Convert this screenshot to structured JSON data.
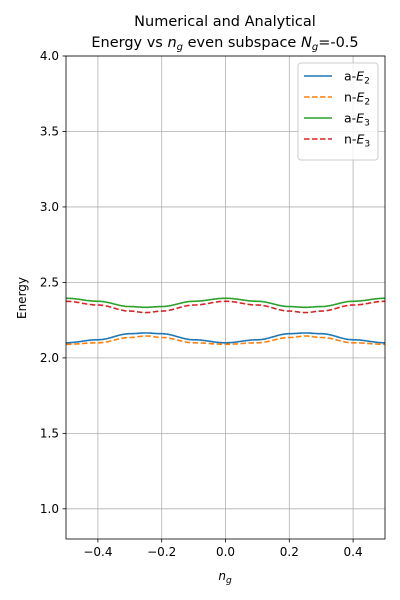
{
  "chart_data": {
    "type": "line",
    "title_line1": "Numerical and Analytical",
    "title_line2_prefix": "Energy vs ",
    "title_line2_var": "n",
    "title_line2_sub": "g",
    "title_line2_mid": " even subspace ",
    "title_line2_var2": "N",
    "title_line2_sub2": "g",
    "title_line2_suffix": "=-0.5",
    "xlabel_var": "n",
    "xlabel_sub": "g",
    "ylabel": "Energy",
    "xlim": [
      -0.5,
      0.5
    ],
    "ylim": [
      0.8,
      4.0
    ],
    "x_ticks": [
      -0.4,
      -0.2,
      0.0,
      0.2,
      0.4
    ],
    "x_tick_labels": [
      "−0.4",
      "−0.2",
      "0.0",
      "0.2",
      "0.4"
    ],
    "y_ticks": [
      1.0,
      1.5,
      2.0,
      2.5,
      3.0,
      3.5,
      4.0
    ],
    "y_tick_labels": [
      "1.0",
      "1.5",
      "2.0",
      "2.5",
      "3.0",
      "3.5",
      "4.0"
    ],
    "grid": true,
    "legend_position": "top-right",
    "x": [
      -0.5,
      -0.4,
      -0.3,
      -0.25,
      -0.2,
      -0.1,
      0.0,
      0.1,
      0.2,
      0.25,
      0.3,
      0.4,
      0.5
    ],
    "series": [
      {
        "name": "a-E",
        "name_sub": "2",
        "color": "#1f77b4",
        "dashed": false,
        "values": [
          2.1,
          2.12,
          2.16,
          2.165,
          2.16,
          2.12,
          2.1,
          2.12,
          2.16,
          2.165,
          2.16,
          2.12,
          2.1
        ]
      },
      {
        "name": "n-E",
        "name_sub": "2",
        "color": "#ff7f0e",
        "dashed": true,
        "values": [
          2.09,
          2.1,
          2.135,
          2.145,
          2.135,
          2.1,
          2.09,
          2.1,
          2.135,
          2.145,
          2.135,
          2.1,
          2.09
        ]
      },
      {
        "name": "a-E",
        "name_sub": "3",
        "color": "#2ca02c",
        "dashed": false,
        "values": [
          2.395,
          2.375,
          2.34,
          2.335,
          2.34,
          2.375,
          2.395,
          2.375,
          2.34,
          2.335,
          2.34,
          2.375,
          2.395
        ]
      },
      {
        "name": "n-E",
        "name_sub": "3",
        "color": "#d62728",
        "dashed": true,
        "values": [
          2.375,
          2.35,
          2.31,
          2.3,
          2.31,
          2.35,
          2.375,
          2.35,
          2.31,
          2.3,
          2.31,
          2.35,
          2.375
        ]
      }
    ]
  }
}
